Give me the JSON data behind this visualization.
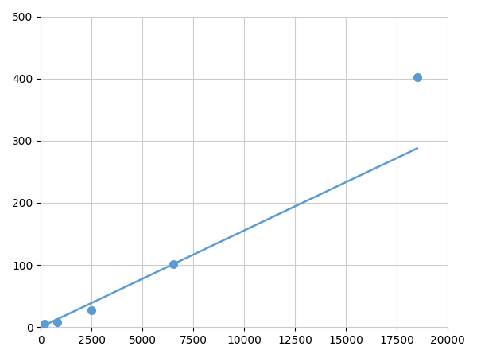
{
  "x_data": [
    200,
    800,
    2500,
    6500,
    18500
  ],
  "y_data": [
    5,
    8,
    27,
    102,
    402
  ],
  "marker_x": [
    200,
    800,
    2500,
    6500,
    18500
  ],
  "marker_y": [
    5,
    8,
    27,
    102,
    402
  ],
  "line_color": "#5b9bd5",
  "marker_color": "#5b9bd5",
  "marker_size": 7,
  "line_width": 1.8,
  "xlim": [
    0,
    20000
  ],
  "ylim": [
    0,
    500
  ],
  "xticks": [
    0,
    2500,
    5000,
    7500,
    10000,
    12500,
    15000,
    17500,
    20000
  ],
  "yticks": [
    0,
    100,
    200,
    300,
    400,
    500
  ],
  "grid_color": "#cccccc",
  "background_color": "#ffffff",
  "tick_label_fontsize": 10
}
